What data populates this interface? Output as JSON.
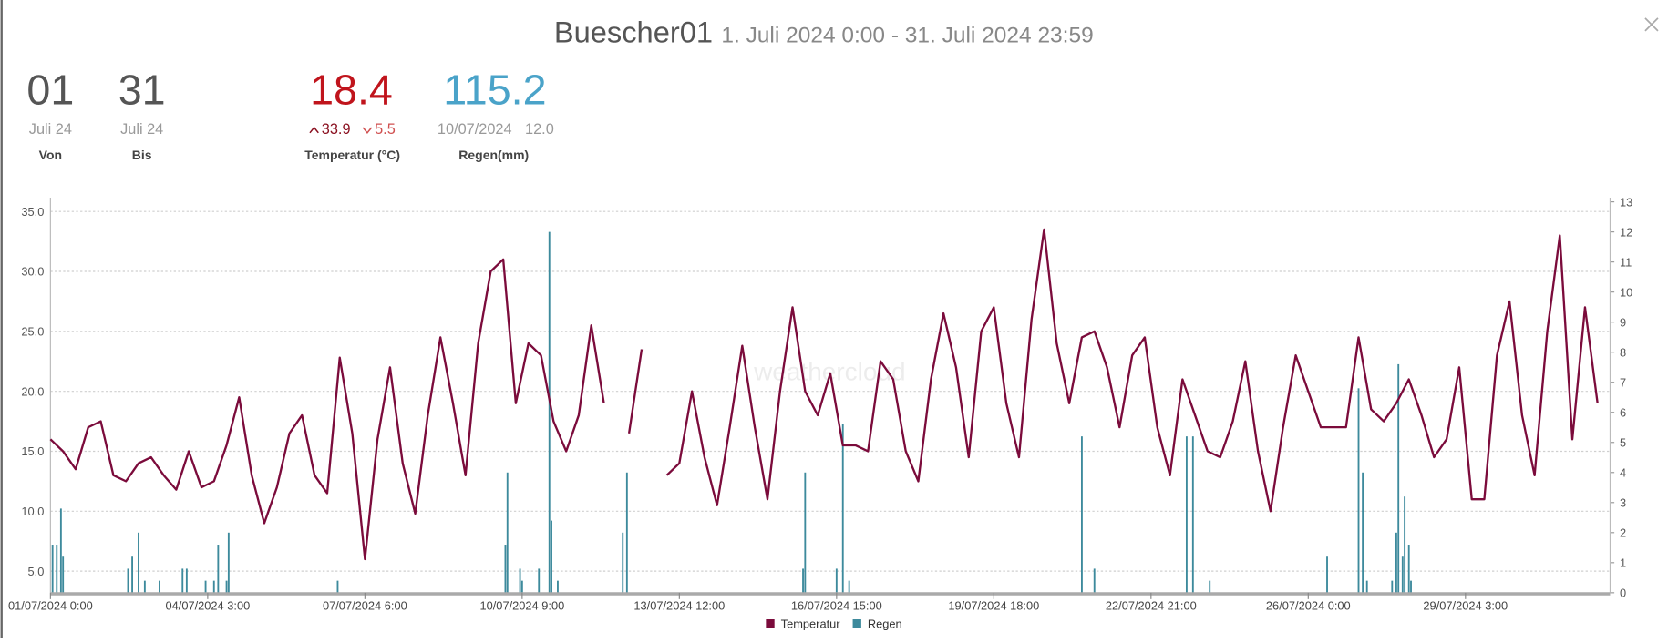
{
  "header": {
    "title": "Buescher01",
    "subtitle": "1. Juli 2024 0:00 - 31. Juli 2024 23:59",
    "from": {
      "day": "01",
      "month": "Juli 24",
      "label": "Von"
    },
    "to": {
      "day": "31",
      "month": "Juli 24",
      "label": "Bis"
    },
    "temperature": {
      "value": 18.4,
      "max": 33.9,
      "min": 5.5,
      "label": "Temperatur (°C)"
    },
    "rain": {
      "value": 115.2,
      "max_date": "10/07/2024",
      "max": "12.0",
      "label": "Regen(mm)"
    }
  },
  "chart_data": {
    "type": "line",
    "watermark": "weathercloud",
    "xlim": [
      "01/07/2024 0:00",
      "31/07/2024 23:59"
    ],
    "xticks": [
      "01/07/2024 0:00",
      "04/07/2024 3:00",
      "07/07/2024 6:00",
      "10/07/2024 9:00",
      "13/07/2024 12:00",
      "16/07/2024 15:00",
      "19/07/2024 18:00",
      "22/07/2024 21:00",
      "26/07/2024 0:00",
      "29/07/2024 3:00"
    ],
    "ylim": [
      3.2,
      35.8
    ],
    "yticks": [
      {
        "value": 5,
        "label": "5.0"
      },
      {
        "value": 10,
        "label": "10.0"
      },
      {
        "value": 15,
        "label": "15.0"
      },
      {
        "value": 20,
        "label": "20.0"
      },
      {
        "value": 25,
        "label": "25.0"
      },
      {
        "value": 30,
        "label": "30.0"
      },
      {
        "value": 35,
        "label": "35.0"
      }
    ],
    "y2lim": [
      0,
      13
    ],
    "y2ticks": [
      0,
      1,
      2,
      3,
      4,
      5,
      6,
      7,
      8,
      9,
      10,
      11,
      12,
      13
    ],
    "grid": true,
    "series": [
      {
        "name": "Temperatur",
        "type": "line",
        "color": "#7b0b3b",
        "x": [
          "01/07/2024 0:00",
          "01/07/2024 6:00",
          "01/07/2024 12:00",
          "01/07/2024 18:00",
          "02/07/2024 0:00",
          "02/07/2024 6:00",
          "02/07/2024 12:00",
          "02/07/2024 18:00",
          "03/07/2024 0:00",
          "03/07/2024 6:00",
          "03/07/2024 12:00",
          "03/07/2024 18:00",
          "04/07/2024 0:00",
          "04/07/2024 6:00",
          "04/07/2024 12:00",
          "04/07/2024 18:00",
          "05/07/2024 0:00",
          "05/07/2024 6:00",
          "05/07/2024 12:00",
          "05/07/2024 18:00",
          "06/07/2024 0:00",
          "06/07/2024 6:00",
          "06/07/2024 12:00",
          "06/07/2024 18:00",
          "07/07/2024 0:00",
          "07/07/2024 6:00",
          "07/07/2024 12:00",
          "07/07/2024 18:00",
          "08/07/2024 0:00",
          "08/07/2024 6:00",
          "08/07/2024 12:00",
          "08/07/2024 18:00",
          "09/07/2024 0:00",
          "09/07/2024 6:00",
          "09/07/2024 12:00",
          "09/07/2024 18:00",
          "10/07/2024 0:00",
          "10/07/2024 6:00",
          "10/07/2024 12:00",
          "10/07/2024 18:00",
          "11/07/2024 0:00",
          "11/07/2024 6:00",
          "11/07/2024 12:00",
          "11/07/2024 18:00",
          "12/07/2024 0:00",
          "12/07/2024 6:00",
          "12/07/2024 12:00",
          "12/07/2024 18:00",
          "13/07/2024 0:00",
          "13/07/2024 6:00",
          "13/07/2024 12:00",
          "13/07/2024 18:00",
          "14/07/2024 0:00",
          "14/07/2024 6:00",
          "14/07/2024 12:00",
          "14/07/2024 18:00",
          "15/07/2024 0:00",
          "15/07/2024 6:00",
          "15/07/2024 12:00",
          "15/07/2024 18:00",
          "16/07/2024 0:00",
          "16/07/2024 6:00",
          "16/07/2024 12:00",
          "16/07/2024 18:00",
          "17/07/2024 0:00",
          "17/07/2024 6:00",
          "17/07/2024 12:00",
          "17/07/2024 18:00",
          "18/07/2024 0:00",
          "18/07/2024 6:00",
          "18/07/2024 12:00",
          "18/07/2024 18:00",
          "19/07/2024 0:00",
          "19/07/2024 6:00",
          "19/07/2024 12:00",
          "19/07/2024 18:00",
          "20/07/2024 0:00",
          "20/07/2024 6:00",
          "20/07/2024 12:00",
          "20/07/2024 18:00",
          "21/07/2024 0:00",
          "21/07/2024 6:00",
          "21/07/2024 12:00",
          "21/07/2024 18:00",
          "22/07/2024 0:00",
          "22/07/2024 6:00",
          "22/07/2024 12:00",
          "22/07/2024 18:00",
          "23/07/2024 0:00",
          "23/07/2024 6:00",
          "23/07/2024 12:00",
          "23/07/2024 18:00",
          "24/07/2024 0:00",
          "24/07/2024 6:00",
          "24/07/2024 12:00",
          "24/07/2024 18:00",
          "25/07/2024 0:00",
          "25/07/2024 6:00",
          "25/07/2024 12:00",
          "25/07/2024 18:00",
          "26/07/2024 0:00",
          "26/07/2024 6:00",
          "26/07/2024 12:00",
          "26/07/2024 18:00",
          "27/07/2024 0:00",
          "27/07/2024 6:00",
          "27/07/2024 12:00",
          "27/07/2024 18:00",
          "28/07/2024 0:00",
          "28/07/2024 6:00",
          "28/07/2024 12:00",
          "28/07/2024 18:00",
          "29/07/2024 0:00",
          "29/07/2024 6:00",
          "29/07/2024 12:00",
          "29/07/2024 18:00",
          "30/07/2024 0:00",
          "30/07/2024 6:00",
          "30/07/2024 12:00",
          "30/07/2024 18:00",
          "31/07/2024 0:00",
          "31/07/2024 6:00",
          "31/07/2024 12:00",
          "31/07/2024 18:00"
        ],
        "values": [
          16,
          15,
          13.5,
          17,
          17.5,
          13,
          12.5,
          14,
          14.5,
          13,
          11.8,
          15,
          12,
          12.5,
          15.5,
          19.5,
          13,
          9,
          12,
          16.5,
          18,
          13,
          11.5,
          22.8,
          16.5,
          6,
          16,
          22,
          14,
          9.8,
          18,
          24.5,
          19,
          13,
          24,
          30,
          31,
          19,
          24,
          23,
          17.5,
          15,
          18,
          25.5,
          19,
          null,
          16.5,
          23.5,
          null,
          13,
          14,
          20,
          14.5,
          10.5,
          17,
          23.8,
          17,
          11,
          20,
          27,
          20,
          18,
          21.5,
          15.5,
          15.5,
          15,
          22.5,
          21,
          15,
          12.5,
          21,
          26.5,
          22,
          14.5,
          25,
          27,
          19,
          14.5,
          26,
          33.5,
          24,
          19,
          24.5,
          25,
          22,
          17,
          23,
          24.5,
          17,
          13,
          21,
          18,
          15,
          14.5,
          17.5,
          22.5,
          15,
          10,
          17,
          23,
          20,
          17,
          17,
          17,
          24.5,
          18.5,
          17.5,
          19,
          21,
          18,
          14.5,
          16,
          22,
          11,
          11,
          23,
          27.5,
          18,
          13,
          25,
          33,
          16,
          27,
          19
        ]
      },
      {
        "name": "Regen",
        "type": "bar",
        "axis": "y2",
        "color": "#3d8a9c",
        "x": [
          "01/07/2024 1:00",
          "01/07/2024 3:00",
          "01/07/2024 5:00",
          "01/07/2024 6:00",
          "02/07/2024 13:00",
          "02/07/2024 15:00",
          "02/07/2024 18:00",
          "02/07/2024 21:00",
          "03/07/2024 4:00",
          "03/07/2024 15:00",
          "03/07/2024 17:00",
          "04/07/2024 2:00",
          "04/07/2024 6:00",
          "04/07/2024 8:00",
          "04/07/2024 12:00",
          "04/07/2024 13:00",
          "06/07/2024 17:00",
          "10/07/2024 1:00",
          "10/07/2024 2:00",
          "10/07/2024 8:00",
          "10/07/2024 9:00",
          "10/07/2024 17:00",
          "10/07/2024 22:00",
          "10/07/2024 23:00",
          "11/07/2024 2:00",
          "12/07/2024 9:00",
          "12/07/2024 11:00",
          "15/07/2024 23:00",
          "16/07/2024 0:00",
          "16/07/2024 15:00",
          "16/07/2024 18:00",
          "16/07/2024 21:00",
          "21/07/2024 12:00",
          "21/07/2024 18:00",
          "23/07/2024 14:00",
          "23/07/2024 17:00",
          "24/07/2024 1:00",
          "26/07/2024 9:00",
          "27/07/2024 0:00",
          "27/07/2024 2:00",
          "27/07/2024 4:00",
          "27/07/2024 16:00",
          "27/07/2024 18:00",
          "27/07/2024 19:00",
          "27/07/2024 21:00",
          "27/07/2024 22:00",
          "28/07/2024 0:00",
          "28/07/2024 1:00"
        ],
        "values": [
          1.6,
          1.6,
          2.8,
          1.2,
          0.8,
          1.2,
          2.0,
          0.4,
          0.4,
          0.8,
          0.8,
          0.4,
          0.4,
          1.6,
          0.4,
          2.0,
          0.4,
          1.6,
          4.0,
          0.8,
          0.4,
          0.8,
          12.0,
          2.4,
          0.4,
          2.0,
          4.0,
          0.8,
          4.0,
          0.8,
          5.6,
          0.4,
          5.2,
          0.8,
          5.2,
          5.2,
          0.4,
          1.2,
          6.8,
          4.0,
          0.4,
          0.4,
          2.0,
          7.6,
          1.2,
          3.2,
          1.6,
          0.4
        ]
      }
    ]
  }
}
